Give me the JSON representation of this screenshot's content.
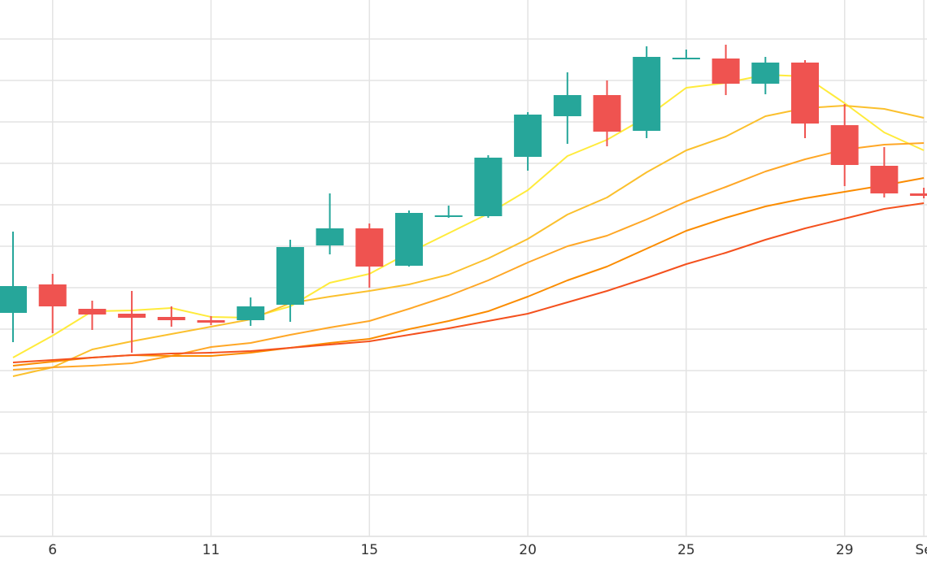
{
  "chart_data": {
    "type": "candlestick",
    "categories": [
      null,
      "6",
      null,
      null,
      null,
      "11",
      null,
      null,
      null,
      "15",
      null,
      null,
      null,
      "20",
      null,
      null,
      null,
      "25",
      null,
      null,
      null,
      "29",
      null,
      "Se"
    ],
    "open": [
      275,
      310,
      280,
      274,
      270,
      266,
      266,
      285,
      358,
      379,
      333,
      394,
      394,
      467,
      517,
      543,
      499,
      588,
      588,
      557,
      583,
      506,
      456,
      422
    ],
    "high": [
      375,
      323,
      290,
      302,
      283,
      271,
      294,
      365,
      422,
      385,
      401,
      407,
      469,
      522,
      571,
      561,
      603,
      599,
      605,
      590,
      586,
      532,
      479,
      429
    ],
    "low": [
      239,
      250,
      254,
      226,
      258,
      260,
      259,
      264,
      347,
      306,
      332,
      392,
      392,
      450,
      483,
      480,
      490,
      587,
      543,
      544,
      490,
      431,
      417,
      416
    ],
    "close": [
      308,
      283,
      273,
      269,
      266,
      263,
      283,
      356,
      379,
      332,
      398,
      395,
      466,
      519,
      543,
      498,
      590,
      589,
      557,
      583,
      508,
      457,
      422,
      419
    ],
    "up_color": "#26a69a",
    "down_color": "#ef5350",
    "series": [
      {
        "color": "#ffeb3b",
        "values": [
          220,
          247,
          277,
          278,
          281,
          270,
          269,
          283,
          312,
          323,
          349,
          373,
          397,
          426,
          468,
          488,
          516,
          552,
          558,
          568,
          566,
          533,
          497,
          475
        ]
      },
      {
        "color": "#fbc02d",
        "values": [
          197,
          208,
          230,
          240,
          249,
          258,
          267,
          287,
          295,
          302,
          310,
          322,
          342,
          366,
          396,
          417,
          448,
          475,
          492,
          517,
          527,
          530,
          526,
          515
        ]
      },
      {
        "color": "#ffa726",
        "values": [
          205,
          208,
          210,
          213,
          222,
          233,
          238,
          248,
          257,
          265,
          280,
          296,
          315,
          337,
          357,
          370,
          390,
          412,
          430,
          449,
          464,
          476,
          482,
          484
        ]
      },
      {
        "color": "#fb8c00",
        "values": [
          210,
          215,
          220,
          223,
          222,
          222,
          226,
          232,
          238,
          243,
          255,
          265,
          277,
          295,
          315,
          332,
          354,
          376,
          392,
          406,
          416,
          424,
          432,
          441
        ]
      },
      {
        "color": "#f4511e",
        "values": [
          214,
          217,
          220,
          223,
          225,
          226,
          228,
          232,
          236,
          240,
          248,
          256,
          265,
          274,
          288,
          302,
          318,
          335,
          349,
          365,
          379,
          391,
          403,
          410
        ]
      }
    ],
    "ylim": [
      0,
      660
    ],
    "yticks": [
      0,
      51,
      102,
      153,
      204,
      255,
      306,
      357,
      408,
      459,
      510,
      561,
      612
    ],
    "grid": true
  }
}
